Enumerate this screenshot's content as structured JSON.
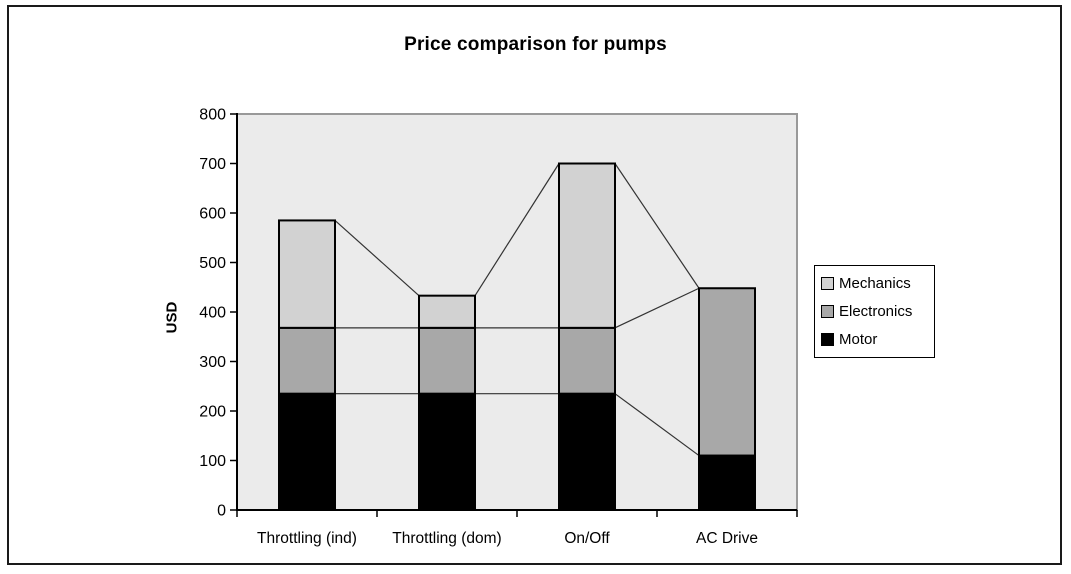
{
  "chart_data": {
    "type": "bar",
    "stacked": true,
    "title": "Price comparison for pumps",
    "xlabel": "",
    "ylabel": "USD",
    "categories": [
      "Throttling (ind)",
      "Throttling (dom)",
      "On/Off",
      "AC Drive"
    ],
    "series": [
      {
        "name": "Motor",
        "color": "#000000",
        "values": [
          235,
          235,
          235,
          110
        ]
      },
      {
        "name": "Electronics",
        "color": "#A8A8A8",
        "values": [
          133,
          133,
          133,
          338
        ]
      },
      {
        "name": "Mechanics",
        "color": "#D2D2D2",
        "values": [
          217,
          65,
          332,
          0
        ]
      }
    ],
    "totals": [
      585,
      433,
      700,
      448
    ],
    "ylim": [
      0,
      800
    ],
    "ytick_step": 100,
    "grid": false,
    "series_lines": true,
    "plot_bg": "#EBEBEB",
    "plot_border_color": "#999999",
    "axis_color": "#000000",
    "series_line_color": "#333333",
    "legend": {
      "position": "right",
      "entries": [
        {
          "label": "Mechanics",
          "color": "#D2D2D2"
        },
        {
          "label": "Electronics",
          "color": "#A8A8A8"
        },
        {
          "label": "Motor",
          "color": "#000000"
        }
      ]
    }
  }
}
